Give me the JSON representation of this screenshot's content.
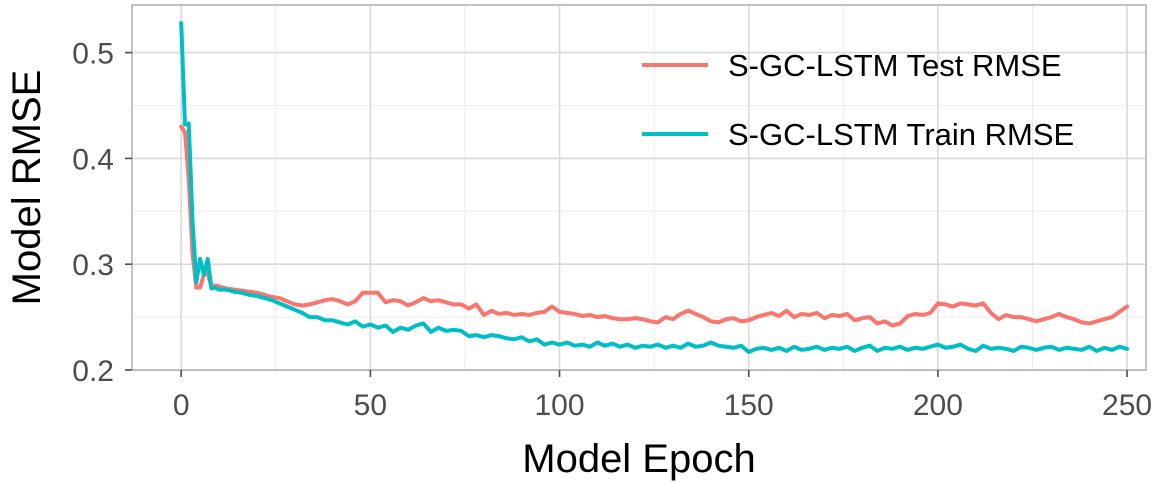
{
  "chart_data": {
    "type": "line",
    "title": "",
    "xlabel": "Model Epoch",
    "ylabel": "Model RMSE",
    "xlim": [
      -13,
      255
    ],
    "ylim": [
      0.2,
      0.545
    ],
    "x_ticks": [
      0,
      50,
      100,
      150,
      200,
      250
    ],
    "y_ticks": [
      0.2,
      0.3,
      0.4,
      0.5
    ],
    "x_tick_labels": [
      "0",
      "50",
      "100",
      "150",
      "200",
      "250"
    ],
    "y_tick_labels": [
      "0.2",
      "0.3",
      "0.4",
      "0.5"
    ],
    "grid": true,
    "legend_position": "top-right",
    "series": [
      {
        "name": "S-GC-LSTM Test RMSE",
        "color": "#f8766d",
        "points": [
          [
            0,
            0.43
          ],
          [
            1,
            0.425
          ],
          [
            2,
            0.38
          ],
          [
            3,
            0.31
          ],
          [
            4,
            0.278
          ],
          [
            5,
            0.278
          ],
          [
            6,
            0.29
          ],
          [
            7,
            0.292
          ],
          [
            8,
            0.278
          ],
          [
            9,
            0.28
          ],
          [
            10,
            0.279
          ],
          [
            12,
            0.277
          ],
          [
            14,
            0.276
          ],
          [
            16,
            0.275
          ],
          [
            18,
            0.274
          ],
          [
            20,
            0.273
          ],
          [
            22,
            0.271
          ],
          [
            24,
            0.269
          ],
          [
            26,
            0.268
          ],
          [
            28,
            0.265
          ],
          [
            30,
            0.262
          ],
          [
            32,
            0.261
          ],
          [
            34,
            0.262
          ],
          [
            36,
            0.264
          ],
          [
            38,
            0.266
          ],
          [
            40,
            0.267
          ],
          [
            42,
            0.265
          ],
          [
            44,
            0.262
          ],
          [
            46,
            0.265
          ],
          [
            48,
            0.273
          ],
          [
            50,
            0.273
          ],
          [
            52,
            0.273
          ],
          [
            54,
            0.264
          ],
          [
            56,
            0.266
          ],
          [
            58,
            0.265
          ],
          [
            60,
            0.261
          ],
          [
            62,
            0.264
          ],
          [
            64,
            0.268
          ],
          [
            66,
            0.265
          ],
          [
            68,
            0.266
          ],
          [
            70,
            0.264
          ],
          [
            72,
            0.262
          ],
          [
            74,
            0.262
          ],
          [
            76,
            0.258
          ],
          [
            78,
            0.262
          ],
          [
            80,
            0.252
          ],
          [
            82,
            0.256
          ],
          [
            84,
            0.253
          ],
          [
            86,
            0.254
          ],
          [
            88,
            0.252
          ],
          [
            90,
            0.253
          ],
          [
            92,
            0.252
          ],
          [
            94,
            0.254
          ],
          [
            96,
            0.255
          ],
          [
            98,
            0.26
          ],
          [
            100,
            0.255
          ],
          [
            102,
            0.254
          ],
          [
            104,
            0.253
          ],
          [
            106,
            0.251
          ],
          [
            108,
            0.252
          ],
          [
            110,
            0.25
          ],
          [
            112,
            0.251
          ],
          [
            114,
            0.249
          ],
          [
            116,
            0.248
          ],
          [
            118,
            0.248
          ],
          [
            120,
            0.249
          ],
          [
            122,
            0.248
          ],
          [
            124,
            0.246
          ],
          [
            126,
            0.245
          ],
          [
            128,
            0.25
          ],
          [
            130,
            0.248
          ],
          [
            132,
            0.253
          ],
          [
            134,
            0.256
          ],
          [
            136,
            0.253
          ],
          [
            138,
            0.25
          ],
          [
            140,
            0.246
          ],
          [
            142,
            0.245
          ],
          [
            144,
            0.248
          ],
          [
            146,
            0.249
          ],
          [
            148,
            0.246
          ],
          [
            150,
            0.247
          ],
          [
            152,
            0.25
          ],
          [
            154,
            0.252
          ],
          [
            156,
            0.254
          ],
          [
            158,
            0.251
          ],
          [
            160,
            0.256
          ],
          [
            162,
            0.25
          ],
          [
            164,
            0.253
          ],
          [
            166,
            0.252
          ],
          [
            168,
            0.254
          ],
          [
            170,
            0.249
          ],
          [
            172,
            0.252
          ],
          [
            174,
            0.251
          ],
          [
            176,
            0.253
          ],
          [
            178,
            0.247
          ],
          [
            180,
            0.249
          ],
          [
            182,
            0.25
          ],
          [
            184,
            0.244
          ],
          [
            186,
            0.246
          ],
          [
            188,
            0.242
          ],
          [
            190,
            0.244
          ],
          [
            192,
            0.251
          ],
          [
            194,
            0.253
          ],
          [
            196,
            0.252
          ],
          [
            198,
            0.254
          ],
          [
            200,
            0.263
          ],
          [
            202,
            0.262
          ],
          [
            204,
            0.26
          ],
          [
            206,
            0.263
          ],
          [
            208,
            0.262
          ],
          [
            210,
            0.261
          ],
          [
            212,
            0.263
          ],
          [
            214,
            0.254
          ],
          [
            216,
            0.248
          ],
          [
            218,
            0.252
          ],
          [
            220,
            0.25
          ],
          [
            222,
            0.25
          ],
          [
            224,
            0.248
          ],
          [
            226,
            0.246
          ],
          [
            228,
            0.248
          ],
          [
            230,
            0.25
          ],
          [
            232,
            0.253
          ],
          [
            234,
            0.25
          ],
          [
            236,
            0.248
          ],
          [
            238,
            0.245
          ],
          [
            240,
            0.244
          ],
          [
            242,
            0.246
          ],
          [
            244,
            0.248
          ],
          [
            246,
            0.25
          ],
          [
            248,
            0.255
          ],
          [
            250,
            0.26
          ]
        ]
      },
      {
        "name": "S-GC-LSTM Train RMSE",
        "color": "#00bfc4",
        "points": [
          [
            0,
            0.528
          ],
          [
            1,
            0.432
          ],
          [
            2,
            0.433
          ],
          [
            3,
            0.34
          ],
          [
            4,
            0.283
          ],
          [
            5,
            0.305
          ],
          [
            6,
            0.29
          ],
          [
            7,
            0.305
          ],
          [
            8,
            0.277
          ],
          [
            9,
            0.278
          ],
          [
            10,
            0.276
          ],
          [
            12,
            0.276
          ],
          [
            14,
            0.274
          ],
          [
            16,
            0.273
          ],
          [
            18,
            0.271
          ],
          [
            20,
            0.27
          ],
          [
            22,
            0.268
          ],
          [
            24,
            0.266
          ],
          [
            26,
            0.263
          ],
          [
            28,
            0.26
          ],
          [
            30,
            0.257
          ],
          [
            32,
            0.254
          ],
          [
            34,
            0.25
          ],
          [
            36,
            0.25
          ],
          [
            38,
            0.247
          ],
          [
            40,
            0.247
          ],
          [
            42,
            0.245
          ],
          [
            44,
            0.243
          ],
          [
            46,
            0.246
          ],
          [
            48,
            0.241
          ],
          [
            50,
            0.243
          ],
          [
            52,
            0.24
          ],
          [
            54,
            0.242
          ],
          [
            56,
            0.236
          ],
          [
            58,
            0.24
          ],
          [
            60,
            0.238
          ],
          [
            62,
            0.242
          ],
          [
            64,
            0.244
          ],
          [
            66,
            0.236
          ],
          [
            68,
            0.24
          ],
          [
            70,
            0.237
          ],
          [
            72,
            0.238
          ],
          [
            74,
            0.237
          ],
          [
            76,
            0.232
          ],
          [
            78,
            0.233
          ],
          [
            80,
            0.231
          ],
          [
            82,
            0.233
          ],
          [
            84,
            0.232
          ],
          [
            86,
            0.23
          ],
          [
            88,
            0.229
          ],
          [
            90,
            0.231
          ],
          [
            92,
            0.227
          ],
          [
            94,
            0.229
          ],
          [
            96,
            0.224
          ],
          [
            98,
            0.226
          ],
          [
            100,
            0.224
          ],
          [
            102,
            0.226
          ],
          [
            104,
            0.223
          ],
          [
            106,
            0.224
          ],
          [
            108,
            0.222
          ],
          [
            110,
            0.226
          ],
          [
            112,
            0.223
          ],
          [
            114,
            0.225
          ],
          [
            116,
            0.222
          ],
          [
            118,
            0.224
          ],
          [
            120,
            0.221
          ],
          [
            122,
            0.223
          ],
          [
            124,
            0.222
          ],
          [
            126,
            0.224
          ],
          [
            128,
            0.221
          ],
          [
            130,
            0.223
          ],
          [
            132,
            0.221
          ],
          [
            134,
            0.225
          ],
          [
            136,
            0.222
          ],
          [
            138,
            0.223
          ],
          [
            140,
            0.226
          ],
          [
            142,
            0.223
          ],
          [
            144,
            0.222
          ],
          [
            146,
            0.221
          ],
          [
            148,
            0.223
          ],
          [
            150,
            0.217
          ],
          [
            152,
            0.22
          ],
          [
            154,
            0.221
          ],
          [
            156,
            0.219
          ],
          [
            158,
            0.221
          ],
          [
            160,
            0.218
          ],
          [
            162,
            0.222
          ],
          [
            164,
            0.219
          ],
          [
            166,
            0.22
          ],
          [
            168,
            0.222
          ],
          [
            170,
            0.219
          ],
          [
            172,
            0.221
          ],
          [
            174,
            0.22
          ],
          [
            176,
            0.222
          ],
          [
            178,
            0.218
          ],
          [
            180,
            0.221
          ],
          [
            182,
            0.223
          ],
          [
            184,
            0.218
          ],
          [
            186,
            0.221
          ],
          [
            188,
            0.22
          ],
          [
            190,
            0.222
          ],
          [
            192,
            0.219
          ],
          [
            194,
            0.221
          ],
          [
            196,
            0.22
          ],
          [
            198,
            0.222
          ],
          [
            200,
            0.224
          ],
          [
            202,
            0.221
          ],
          [
            204,
            0.222
          ],
          [
            206,
            0.224
          ],
          [
            208,
            0.22
          ],
          [
            210,
            0.218
          ],
          [
            212,
            0.223
          ],
          [
            214,
            0.22
          ],
          [
            216,
            0.221
          ],
          [
            218,
            0.22
          ],
          [
            220,
            0.218
          ],
          [
            222,
            0.222
          ],
          [
            224,
            0.221
          ],
          [
            226,
            0.219
          ],
          [
            228,
            0.221
          ],
          [
            230,
            0.222
          ],
          [
            232,
            0.219
          ],
          [
            234,
            0.221
          ],
          [
            236,
            0.22
          ],
          [
            238,
            0.219
          ],
          [
            240,
            0.222
          ],
          [
            242,
            0.218
          ],
          [
            244,
            0.221
          ],
          [
            246,
            0.219
          ],
          [
            248,
            0.222
          ],
          [
            250,
            0.22
          ]
        ]
      }
    ]
  }
}
